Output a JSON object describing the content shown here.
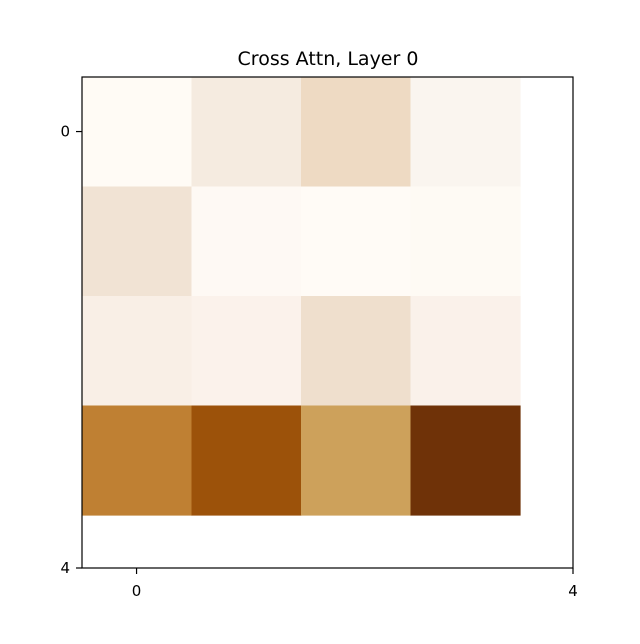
{
  "chart_data": {
    "type": "heatmap",
    "title": "Cross Attn, Layer 0",
    "xlabel": "",
    "ylabel": "",
    "colormap": "copper-brown (light cream = low, dark brown = high)",
    "rows": 4,
    "cols": 4,
    "extent": [
      0,
      4
    ],
    "x_ticks": [
      "0",
      "4"
    ],
    "y_ticks": [
      "0",
      "4"
    ],
    "grid": false,
    "values": [
      [
        0.03,
        0.1,
        0.18,
        0.06
      ],
      [
        0.12,
        0.04,
        0.03,
        0.03
      ],
      [
        0.08,
        0.07,
        0.13,
        0.07
      ],
      [
        0.58,
        0.85,
        0.45,
        1.0
      ]
    ],
    "cell_colors": [
      [
        "#fffbf5",
        "#f5ebe0",
        "#eedac3",
        "#faf5ef"
      ],
      [
        "#f1e3d4",
        "#fef9f4",
        "#fffbf6",
        "#fefaf4"
      ],
      [
        "#f9efe6",
        "#fbf2eb",
        "#efdfcd",
        "#faf1ea"
      ],
      [
        "#bf8033",
        "#9c520a",
        "#cda15b",
        "#6f3208"
      ]
    ]
  }
}
